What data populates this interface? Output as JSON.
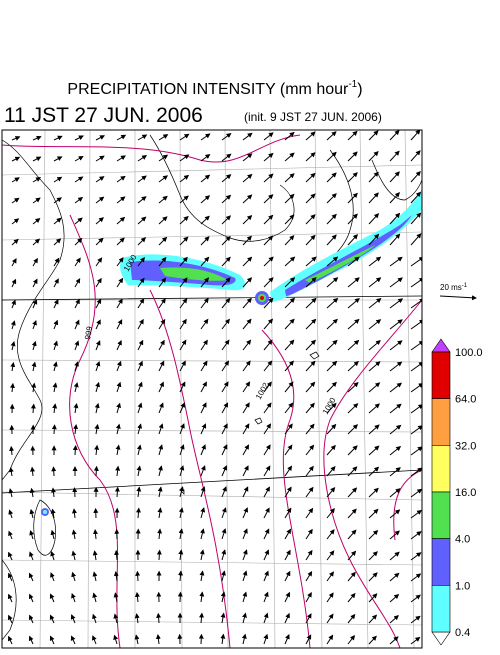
{
  "title": {
    "main": "PRECIPITATION INTENSITY (mm hour",
    "exponent": "-1",
    "close": ")"
  },
  "valid_time": "11 JST 27 JUN. 2006",
  "init_time": "(init. 9 JST 27 JUN. 2006)",
  "reference_vector": {
    "label": "20 ms",
    "exponent": "-1"
  },
  "contour_labels": [
    "1000",
    "999",
    "1002",
    "1000"
  ],
  "colorbar": {
    "levels": [
      {
        "value": 100,
        "label": "100.0"
      },
      {
        "value": 64,
        "label": "64.0"
      },
      {
        "value": 32,
        "label": "32.0"
      },
      {
        "value": 16,
        "label": "16.0"
      },
      {
        "value": 4,
        "label": "4.0"
      },
      {
        "value": 1,
        "label": "1.0"
      },
      {
        "value": 0.4,
        "label": "0.4"
      }
    ],
    "colors": [
      "#e00000",
      "#ffa040",
      "#ffff60",
      "#50e050",
      "#6060ff",
      "#60ffff"
    ],
    "over_color": "#c040ff",
    "under_color": "#ffffff"
  }
}
